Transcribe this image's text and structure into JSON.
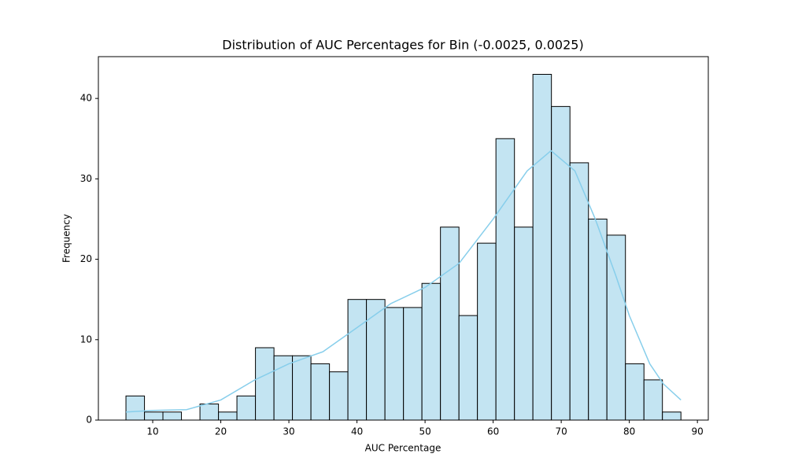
{
  "chart_data": {
    "type": "histogram",
    "title": "Distribution of AUC Percentages for Bin (-0.0025, 0.0025)",
    "xlabel": "AUC Percentage",
    "ylabel": "Frequency",
    "bins": [
      6.07,
      8.79,
      11.5,
      14.22,
      16.94,
      19.66,
      22.37,
      25.09,
      27.81,
      30.52,
      33.24,
      35.96,
      38.67,
      41.39,
      44.11,
      46.83,
      49.54,
      52.26,
      54.98,
      57.69,
      60.41,
      63.13,
      65.84,
      68.56,
      71.28,
      74.0,
      76.71,
      79.43,
      82.15,
      84.86,
      87.58
    ],
    "values": [
      3,
      1,
      1,
      0,
      2,
      1,
      3,
      9,
      8,
      8,
      7,
      6,
      15,
      15,
      14,
      14,
      17,
      24,
      13,
      22,
      35,
      24,
      43,
      39,
      32,
      25,
      23,
      7,
      5,
      1
    ],
    "color": "#c3e4f2",
    "edgecolor": "#000000",
    "kde": {
      "x": [
        6.07,
        10,
        15,
        20,
        25,
        30,
        35,
        40,
        45,
        50,
        55,
        60,
        65,
        68.5,
        72,
        75,
        78,
        80,
        83,
        85,
        87.58
      ],
      "values": [
        1.0,
        1.2,
        1.3,
        2.5,
        5,
        7,
        8.5,
        11.5,
        14.5,
        16.5,
        19.5,
        25,
        31,
        33.5,
        31,
        25,
        18,
        13,
        7,
        4.5,
        2.5
      ],
      "color": "#87ceeb"
    },
    "xlim": [
      2.02,
      91.6
    ],
    "ylim": [
      0,
      45.2
    ],
    "xticks": [
      10,
      20,
      30,
      40,
      50,
      60,
      70,
      80,
      90
    ],
    "yticks": [
      0,
      10,
      20,
      30,
      40
    ]
  }
}
